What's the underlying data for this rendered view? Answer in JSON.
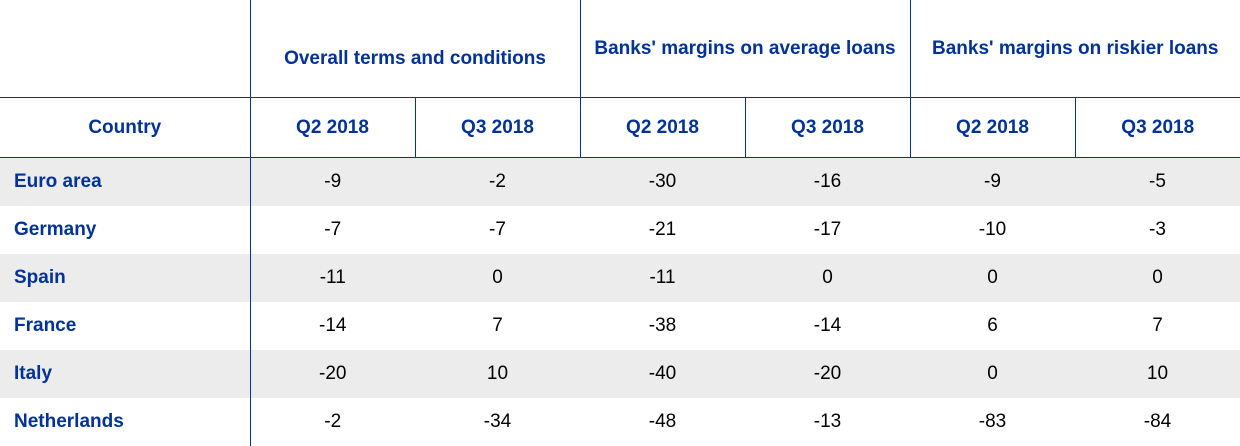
{
  "table": {
    "groups": [
      "Overall terms and conditions",
      "Banks' margins on average loans",
      "Banks' margins on riskier loans"
    ],
    "country_header": "Country",
    "periods": [
      "Q2 2018",
      "Q3 2018",
      "Q2 2018",
      "Q3 2018",
      "Q2 2018",
      "Q3 2018"
    ],
    "rows": [
      {
        "country": "Euro area",
        "values": [
          "-9",
          "-2",
          "-30",
          "-16",
          "-9",
          "-5"
        ]
      },
      {
        "country": "Germany",
        "values": [
          "-7",
          "-7",
          "-21",
          "-17",
          "-10",
          "-3"
        ]
      },
      {
        "country": "Spain",
        "values": [
          "-11",
          "0",
          "-11",
          "0",
          "0",
          "0"
        ]
      },
      {
        "country": "France",
        "values": [
          "-14",
          "7",
          "-38",
          "-14",
          "6",
          "7"
        ]
      },
      {
        "country": "Italy",
        "values": [
          "-20",
          "10",
          "-40",
          "-20",
          "0",
          "10"
        ]
      },
      {
        "country": "Netherlands",
        "values": [
          "-2",
          "-34",
          "-48",
          "-13",
          "-83",
          "-84"
        ]
      }
    ]
  },
  "colors": {
    "header_text": "#003299",
    "row_shade": "#ececec"
  }
}
